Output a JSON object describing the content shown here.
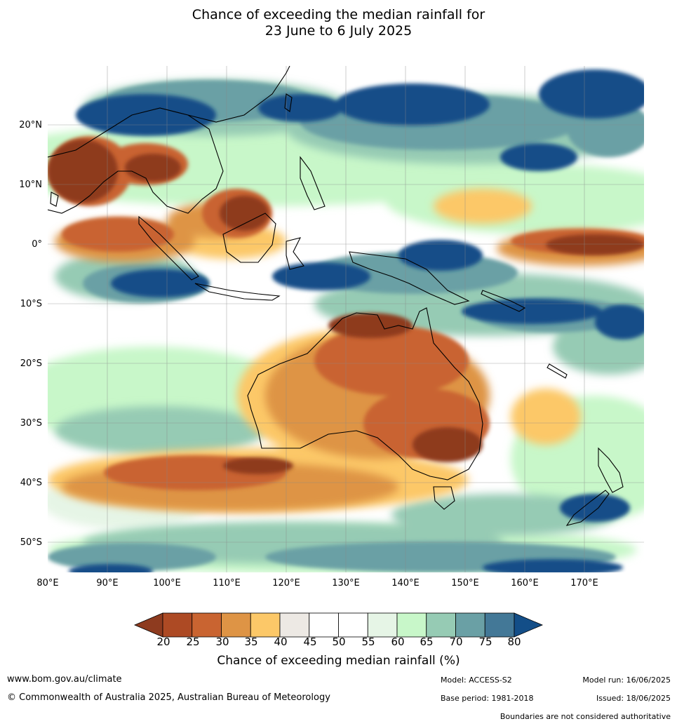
{
  "title": {
    "line1": "Chance of exceeding the median rainfall for",
    "line2": "23 June to 6 July 2025"
  },
  "map": {
    "lat_labels": [
      "20°N",
      "10°N",
      "0°",
      "10°S",
      "20°S",
      "30°S",
      "40°S",
      "50°S"
    ],
    "lon_labels": [
      "80°E",
      "90°E",
      "100°E",
      "110°E",
      "120°E",
      "130°E",
      "140°E",
      "150°E",
      "160°E",
      "170°E"
    ]
  },
  "colorbar": {
    "ticks": [
      "20",
      "25",
      "30",
      "35",
      "40",
      "45",
      "50",
      "55",
      "60",
      "65",
      "70",
      "75",
      "80"
    ],
    "colors": [
      "#8e3b1f",
      "#ad4a24",
      "#c96431",
      "#de9445",
      "#fcc868",
      "#ede9e4",
      "#ffffff",
      "#ffffff",
      "#e6f5e6",
      "#c8f7c9",
      "#96cbb4",
      "#6aa0a5",
      "#437897",
      "#134e88"
    ],
    "title": "Chance of exceeding median rainfall (%)"
  },
  "footer": {
    "website": "www.bom.gov.au/climate",
    "copyright": "© Commonwealth of Australia 2025, Australian Bureau of Meteorology",
    "model": "Model: ACCESS-S2",
    "base_period": "Base period: 1981-2018",
    "model_run": "Model run: 16/06/2025",
    "issued": "Issued: 18/06/2025",
    "disclaimer": "Boundaries are not considered authoritative"
  }
}
